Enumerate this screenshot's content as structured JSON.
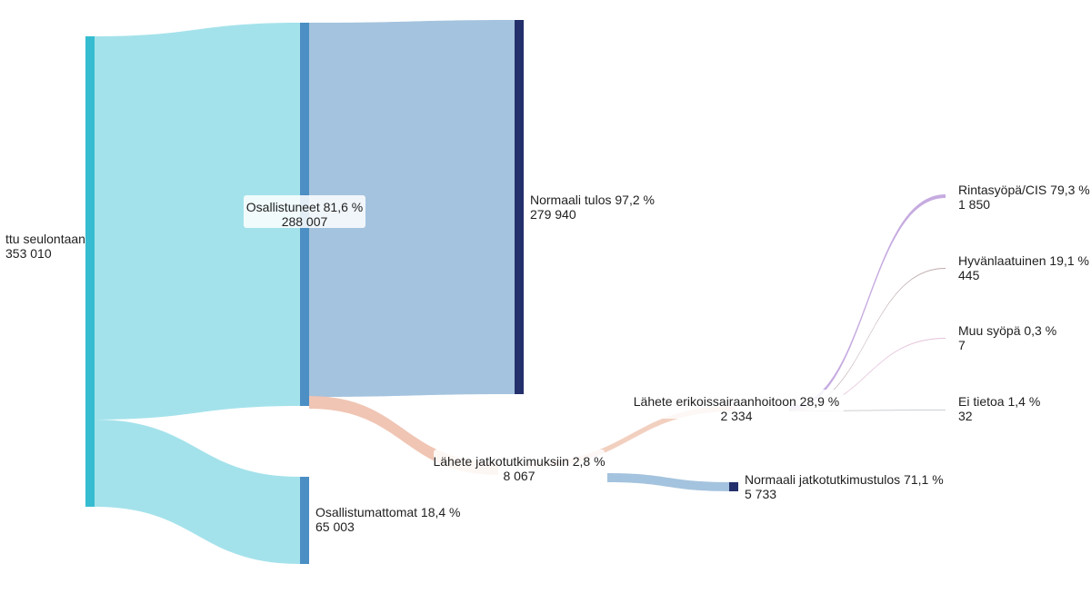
{
  "chart_data": {
    "type": "sankey",
    "nodes": [
      {
        "id": "invited",
        "label": "ttu seulontaan",
        "value_label": "353 010",
        "value": 353010,
        "color": "#35bcd0"
      },
      {
        "id": "participated",
        "label": "Osallistuneet 81,6 %",
        "value_label": "288 007",
        "value": 288007,
        "color": "#4b8fc4"
      },
      {
        "id": "not_participated",
        "label": "Osallistumattomat 18,4 %",
        "value_label": "65 003",
        "value": 65003,
        "color": "#4b8fc4"
      },
      {
        "id": "normal",
        "label": "Normaali tulos 97,2 %",
        "value_label": "279 940",
        "value": 279940,
        "color": "#23306b"
      },
      {
        "id": "referral_further",
        "label": "Lähete jatkotutkimuksiin 2,8 %",
        "value_label": "8 067",
        "value": 8067,
        "color": "#f6d9cc"
      },
      {
        "id": "referral_special",
        "label": "Lähete erikoissairaanhoitoon 28,9 %",
        "value_label": "2 334",
        "value": 2334,
        "color": "#f6d9cc"
      },
      {
        "id": "normal_further",
        "label": "Normaali jatkotutkimustulos 71,1 %",
        "value_label": "5 733",
        "value": 5733,
        "color": "#23306b"
      },
      {
        "id": "cancer_cis",
        "label": "Rintasyöpä/CIS 79,3 %",
        "value_label": "1 850",
        "value": 1850,
        "color": "#a07ad0"
      },
      {
        "id": "benign",
        "label": "Hyvänlaatuinen 19,1 %",
        "value_label": "445",
        "value": 445,
        "color": "#8a6a6a"
      },
      {
        "id": "other_cancer",
        "label": "Muu syöpä 0,3 %",
        "value_label": "7",
        "value": 7,
        "color": "#d6a3c8"
      },
      {
        "id": "no_info",
        "label": "Ei tietoa 1,4 %",
        "value_label": "32",
        "value": 32,
        "color": "#9aa0a8"
      }
    ],
    "links": [
      {
        "source": "invited",
        "target": "participated",
        "value": 288007,
        "color": "#9fe0ea"
      },
      {
        "source": "invited",
        "target": "not_participated",
        "value": 65003,
        "color": "#9fe0ea"
      },
      {
        "source": "participated",
        "target": "normal",
        "value": 279940,
        "color": "#9fc0dc"
      },
      {
        "source": "participated",
        "target": "referral_further",
        "value": 8067,
        "color": "#efc2b0"
      },
      {
        "source": "referral_further",
        "target": "referral_special",
        "value": 2334,
        "color": "#f1cdbd"
      },
      {
        "source": "referral_further",
        "target": "normal_further",
        "value": 5733,
        "color": "#9fc0dc"
      },
      {
        "source": "referral_special",
        "target": "cancer_cis",
        "value": 1850,
        "color": "#c3a6de"
      },
      {
        "source": "referral_special",
        "target": "benign",
        "value": 445,
        "color": "#b9a5a5"
      },
      {
        "source": "referral_special",
        "target": "other_cancer",
        "value": 7,
        "color": "#e3bfd7"
      },
      {
        "source": "referral_special",
        "target": "no_info",
        "value": 32,
        "color": "#c9ccd1"
      }
    ]
  }
}
